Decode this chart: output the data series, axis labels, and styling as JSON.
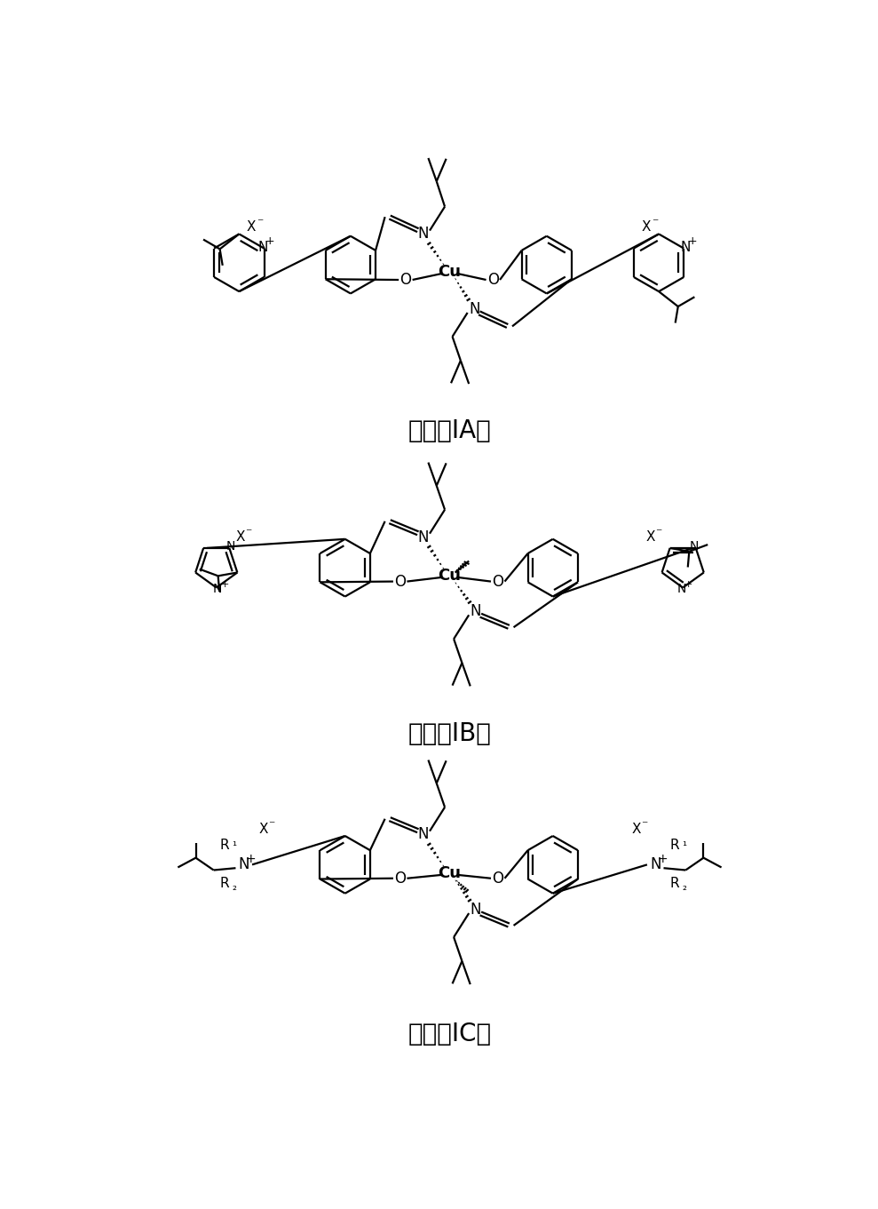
{
  "background_color": "#ffffff",
  "label_IA": "通式（IA）",
  "label_IB": "通式（IB）",
  "label_IC": "通式（IC）",
  "label_fontsize": 20,
  "line_color": "#000000",
  "line_width": 1.6,
  "fig_width": 9.89,
  "fig_height": 13.61
}
